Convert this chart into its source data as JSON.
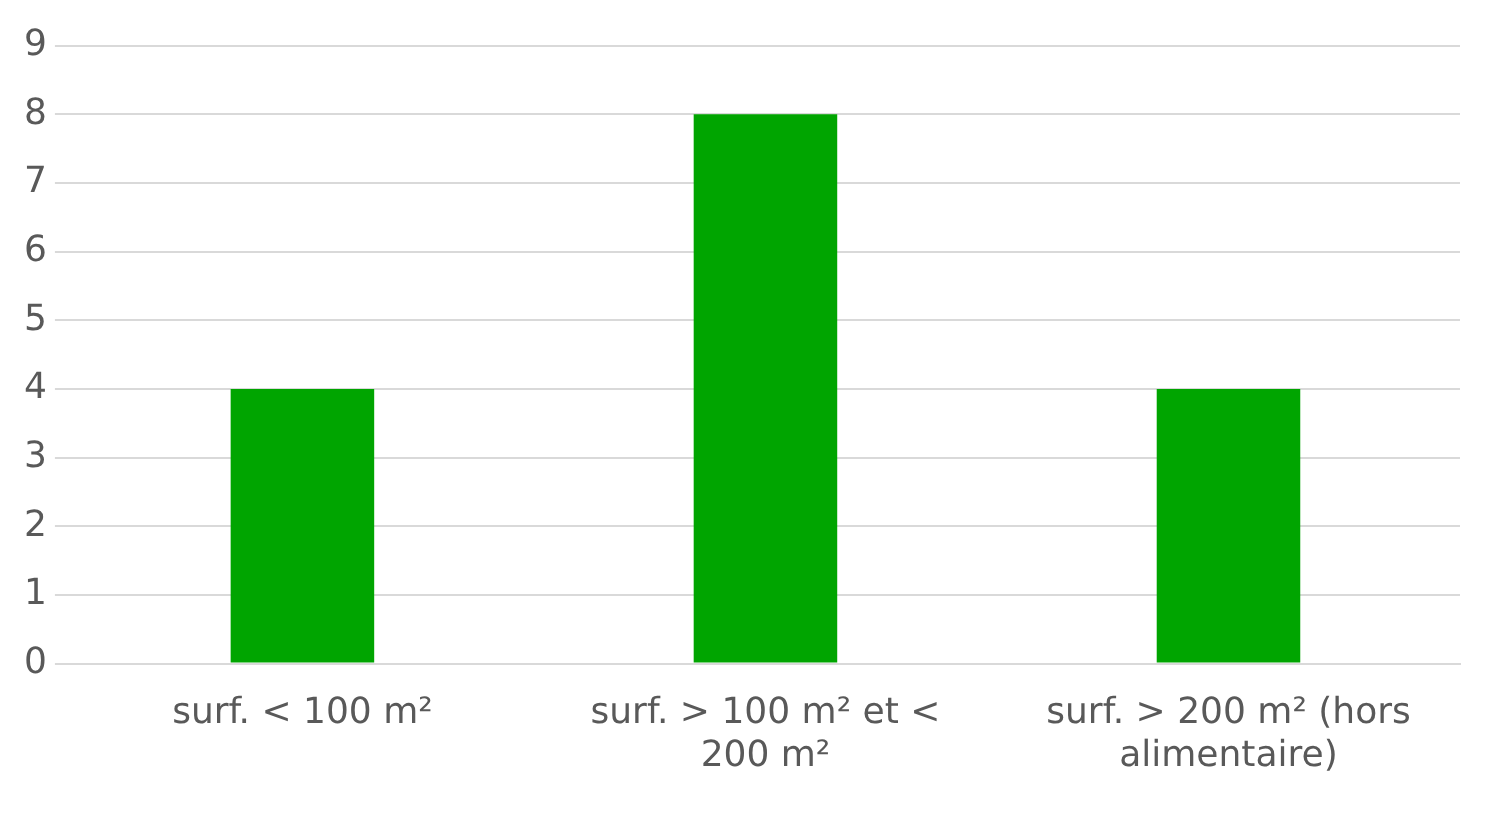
{
  "chart_data": {
    "type": "bar",
    "categories": [
      "surf. < 100 m²",
      "surf. > 100 m² et < 200 m²",
      "surf. > 200 m² (hors alimentaire)"
    ],
    "values": [
      4,
      8,
      4
    ],
    "color": "#00a500",
    "ylim": [
      0,
      9
    ],
    "yticks": [
      0,
      1,
      2,
      3,
      4,
      5,
      6,
      7,
      8,
      9
    ],
    "grid": "y",
    "legend": false
  }
}
